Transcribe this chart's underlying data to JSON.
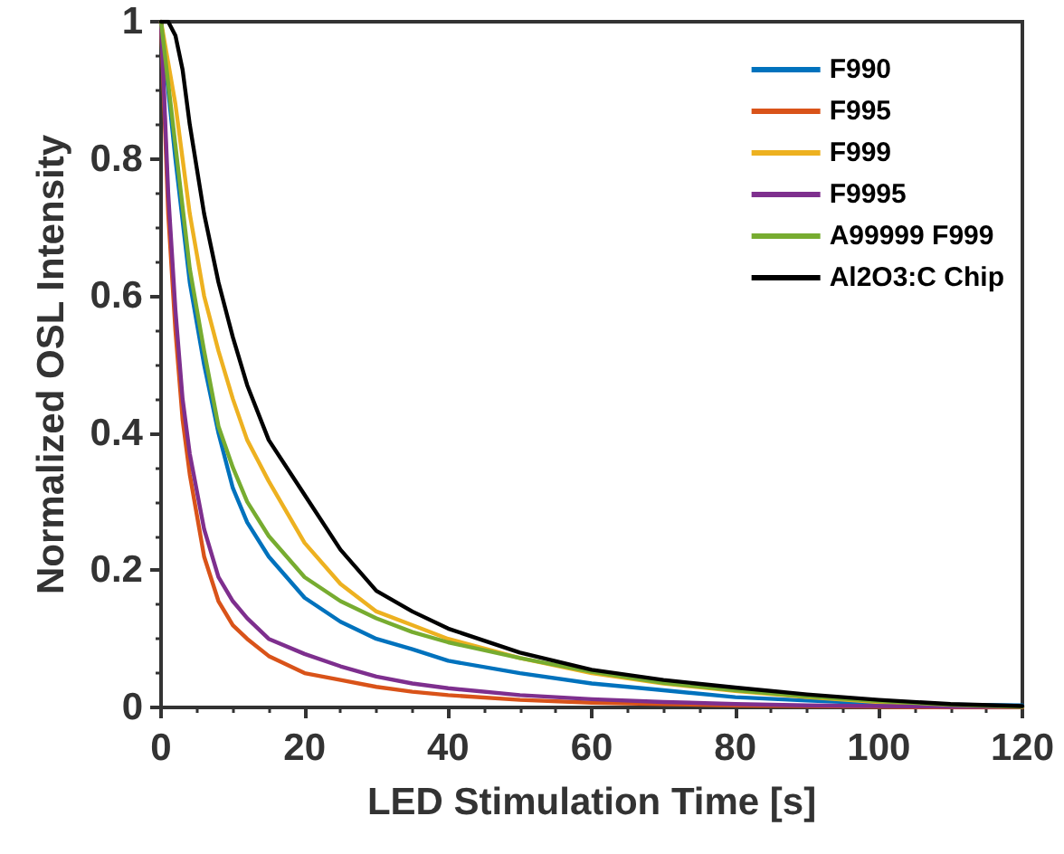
{
  "chart_data": {
    "type": "line",
    "xlabel": "LED Stimulation Time [s]",
    "ylabel": "Normalized OSL Intensity",
    "x": [
      0,
      1,
      2,
      3,
      4,
      6,
      8,
      10,
      12,
      15,
      20,
      25,
      30,
      35,
      40,
      50,
      60,
      70,
      80,
      90,
      100,
      110,
      120
    ],
    "series": [
      {
        "name": "F990",
        "color": "#0072bd",
        "values": [
          1,
          0.9,
          0.8,
          0.71,
          0.62,
          0.5,
          0.4,
          0.32,
          0.27,
          0.22,
          0.16,
          0.125,
          0.1,
          0.085,
          0.068,
          0.05,
          0.035,
          0.025,
          0.015,
          0.01,
          0.006,
          0.004,
          0.003
        ]
      },
      {
        "name": "F995",
        "color": "#d95319",
        "values": [
          1,
          0.72,
          0.55,
          0.42,
          0.34,
          0.22,
          0.155,
          0.12,
          0.1,
          0.075,
          0.05,
          0.04,
          0.03,
          0.023,
          0.018,
          0.011,
          0.007,
          0.005,
          0.003,
          0.002,
          0.001,
          0,
          0
        ]
      },
      {
        "name": "F999",
        "color": "#edb120",
        "values": [
          1,
          0.94,
          0.88,
          0.8,
          0.72,
          0.6,
          0.52,
          0.45,
          0.39,
          0.33,
          0.24,
          0.18,
          0.14,
          0.12,
          0.1,
          0.072,
          0.05,
          0.035,
          0.024,
          0.015,
          0.008,
          0.004,
          0.001
        ]
      },
      {
        "name": "F9995",
        "color": "#7e2f8e",
        "values": [
          1,
          0.75,
          0.58,
          0.45,
          0.37,
          0.26,
          0.19,
          0.155,
          0.13,
          0.1,
          0.078,
          0.06,
          0.045,
          0.035,
          0.028,
          0.018,
          0.012,
          0.008,
          0.005,
          0.003,
          0.002,
          0.001,
          0.001
        ]
      },
      {
        "name": "A99999 F999",
        "color": "#77ac30",
        "values": [
          1,
          0.91,
          0.82,
          0.73,
          0.64,
          0.52,
          0.41,
          0.35,
          0.3,
          0.25,
          0.19,
          0.155,
          0.13,
          0.11,
          0.095,
          0.072,
          0.052,
          0.036,
          0.025,
          0.016,
          0.009,
          0.004,
          0.001
        ]
      },
      {
        "name": "Al2O3:C Chip",
        "color": "#000000",
        "values": [
          1,
          1,
          0.98,
          0.93,
          0.85,
          0.72,
          0.62,
          0.54,
          0.47,
          0.39,
          0.31,
          0.23,
          0.17,
          0.14,
          0.115,
          0.08,
          0.055,
          0.04,
          0.029,
          0.019,
          0.011,
          0.005,
          0.002
        ]
      }
    ],
    "xlim": [
      0,
      120
    ],
    "xticks": [
      0,
      20,
      40,
      60,
      80,
      100,
      120
    ],
    "ylim": [
      0,
      1
    ],
    "yticks": [
      0,
      0.2,
      0.4,
      0.6,
      0.8,
      1
    ],
    "grid": false,
    "legend": "top right",
    "marker": "none",
    "line_style": "solid"
  }
}
